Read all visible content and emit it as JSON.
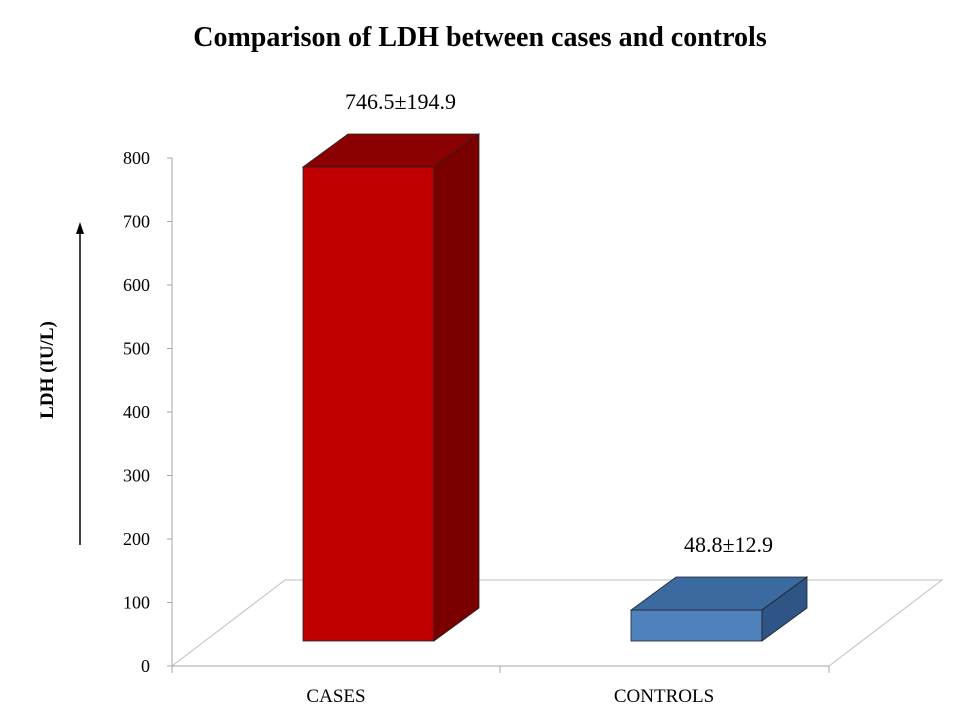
{
  "chart_data": {
    "type": "bar",
    "title": "Comparison of LDH between cases and controls",
    "xlabel": "",
    "ylabel": "LDH (IU/L)",
    "categories": [
      "CASES",
      "CONTROLS"
    ],
    "values": [
      746.5,
      48.8
    ],
    "data_labels": [
      "746.5±194.9",
      "48.8±12.9"
    ],
    "ylim": [
      0,
      800
    ],
    "yticks": [
      0,
      100,
      200,
      300,
      400,
      500,
      600,
      700,
      800
    ],
    "ytick_labels": [
      "0",
      "100",
      "200",
      "300",
      "400",
      "500",
      "600",
      "700",
      "800"
    ],
    "grid": false,
    "legend": "none",
    "colors": {
      "CASES": {
        "front": "#c00000",
        "top": "#8b0000",
        "side": "#7a0000"
      },
      "CONTROLS": {
        "front": "#4f81bd",
        "top": "#3b6aa0",
        "side": "#2f5587"
      }
    }
  }
}
